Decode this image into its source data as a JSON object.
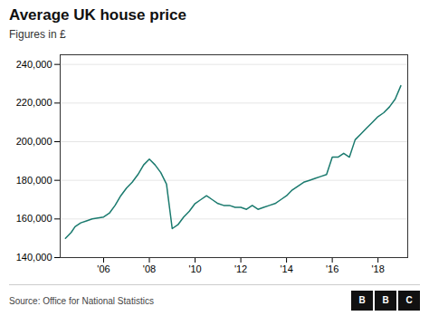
{
  "chart_data": {
    "type": "line",
    "title": "Average UK house price",
    "subtitle": "Figures in £",
    "source": "Source: Office for National Statistics",
    "logo": [
      "B",
      "B",
      "C"
    ],
    "color": "#1a7a6e",
    "grid": "y",
    "x": [
      2004.33,
      2004.58,
      2004.75,
      2005.0,
      2005.25,
      2005.5,
      2005.75,
      2006.0,
      2006.25,
      2006.5,
      2006.75,
      2007.0,
      2007.25,
      2007.5,
      2007.75,
      2008.0,
      2008.25,
      2008.5,
      2008.75,
      2009.0,
      2009.25,
      2009.5,
      2009.75,
      2010.0,
      2010.25,
      2010.5,
      2010.75,
      2011.0,
      2011.25,
      2011.5,
      2011.75,
      2012.0,
      2012.25,
      2012.5,
      2012.75,
      2013.0,
      2013.25,
      2013.5,
      2013.75,
      2014.0,
      2014.25,
      2014.5,
      2014.75,
      2015.0,
      2015.25,
      2015.5,
      2015.75,
      2016.0,
      2016.25,
      2016.5,
      2016.75,
      2017.0,
      2017.25,
      2017.5,
      2017.75,
      2018.0,
      2018.25,
      2018.5,
      2018.75,
      2019.0
    ],
    "values": [
      150000,
      153000,
      156000,
      158000,
      159000,
      160000,
      160500,
      161000,
      163000,
      167000,
      172000,
      176000,
      179000,
      183000,
      188000,
      191000,
      188000,
      184000,
      178000,
      155000,
      157000,
      161000,
      164000,
      168000,
      170000,
      172000,
      170000,
      168000,
      167000,
      167000,
      166000,
      166000,
      165000,
      167000,
      165000,
      166000,
      167000,
      168000,
      170000,
      172000,
      175000,
      177000,
      179000,
      180000,
      181000,
      182000,
      183000,
      192000,
      192000,
      194000,
      192000,
      201000,
      204000,
      207000,
      210000,
      213000,
      215000,
      218000,
      222000,
      229000
    ],
    "xlim": [
      2004.1,
      2019.3
    ],
    "xticks": [
      {
        "value": 2006,
        "label": "'06"
      },
      {
        "value": 2008,
        "label": "'08"
      },
      {
        "value": 2010,
        "label": "'10"
      },
      {
        "value": 2012,
        "label": "'12"
      },
      {
        "value": 2014,
        "label": "'14"
      },
      {
        "value": 2016,
        "label": "'16"
      },
      {
        "value": 2018,
        "label": "'18"
      }
    ],
    "ylim": [
      140000,
      245000
    ],
    "yticks": [
      {
        "value": 140000,
        "label": "140,000"
      },
      {
        "value": 160000,
        "label": "160,000"
      },
      {
        "value": 180000,
        "label": "180,000"
      },
      {
        "value": 200000,
        "label": "200,000"
      },
      {
        "value": 220000,
        "label": "220,000"
      },
      {
        "value": 240000,
        "label": "240,000"
      }
    ]
  }
}
